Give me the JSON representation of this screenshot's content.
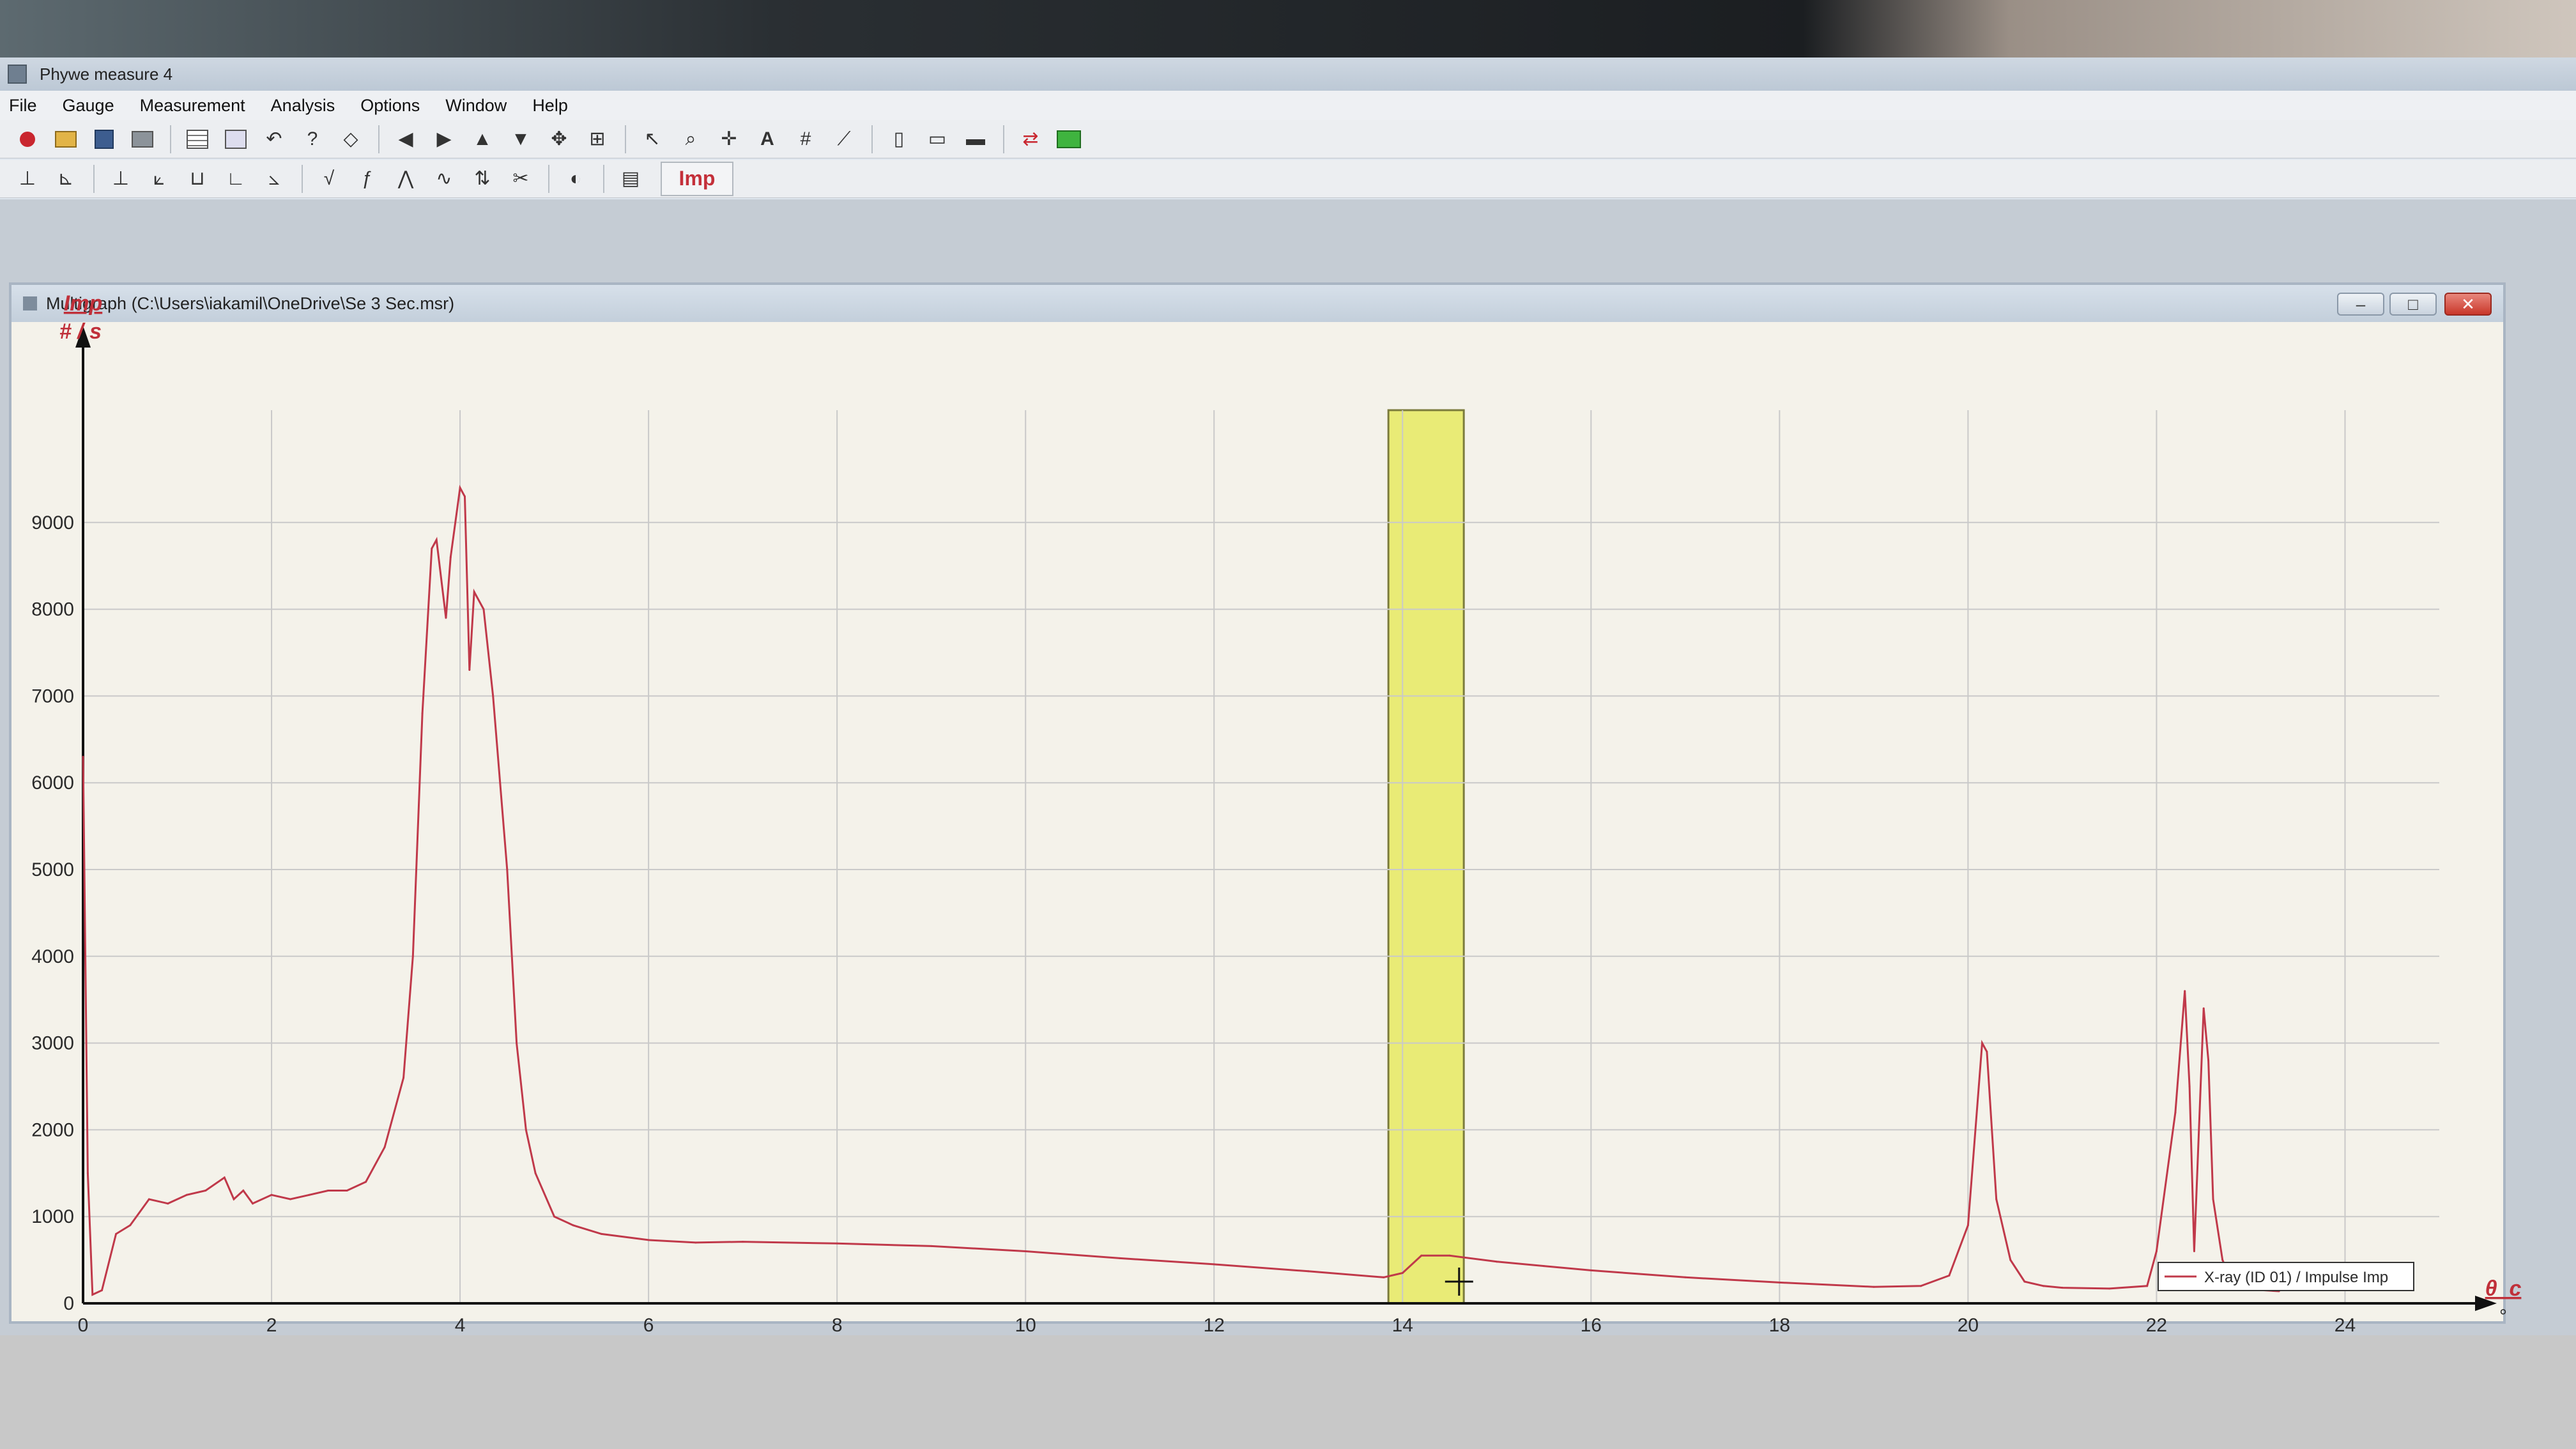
{
  "app": {
    "title": "Phywe measure 4",
    "menu": [
      "File",
      "Gauge",
      "Measurement",
      "Analysis",
      "Options",
      "Window",
      "Help"
    ],
    "toolbar1_icons": [
      "record-icon",
      "open-folder-icon",
      "save-icon",
      "print-icon",
      "table-icon",
      "image-icon",
      "undo-icon",
      "help-icon",
      "erase-icon",
      "arrow-left-icon",
      "arrow-right-icon",
      "arrow-up-icon",
      "arrow-down-icon",
      "move-icon",
      "autoscale-icon",
      "pointer-icon",
      "zoom-icon",
      "crosshair-icon",
      "text-icon",
      "grid-icon",
      "survey-icon",
      "channel-select-icon",
      "display-icon",
      "display-options-icon",
      "transfer-icon",
      "screen-icon"
    ],
    "toolbar2_icons": [
      "axis-a-icon",
      "axis-b-icon",
      "axis-c-icon",
      "axis-d-icon",
      "axis-e-icon",
      "axis-f-icon",
      "axis-g-icon",
      "sqrt-icon",
      "integral-icon",
      "peak-icon",
      "smooth-icon",
      "swap-icon",
      "cut-icon",
      "sound-icon",
      "legend-icon"
    ],
    "imp_button_label": "Imp"
  },
  "window": {
    "title": "Multigraph (C:\\Users\\iakamil\\OneDrive\\Se 3 Sec.msr)",
    "min_label": "–",
    "max_label": "□",
    "close_label": "✕"
  },
  "chart_data": {
    "type": "line",
    "ylabel": "Imp",
    "yunit": "# / s",
    "xlabel": "θ_c",
    "xunit": "°",
    "xlim": [
      0,
      25
    ],
    "ylim": [
      0,
      10000
    ],
    "xticks": [
      0,
      2,
      4,
      6,
      8,
      10,
      12,
      14,
      16,
      18,
      20,
      22,
      24
    ],
    "yticks": [
      0,
      1000,
      2000,
      3000,
      4000,
      5000,
      6000,
      7000,
      8000,
      9000
    ],
    "grid": true,
    "legend": "bottom-right",
    "series": [
      {
        "name": "X-ray (ID 01) / Impulse Imp",
        "color": "#c0394a",
        "x": [
          0.0,
          0.05,
          0.1,
          0.2,
          0.35,
          0.5,
          0.7,
          0.9,
          1.1,
          1.3,
          1.5,
          1.6,
          1.7,
          1.8,
          2.0,
          2.2,
          2.4,
          2.6,
          2.8,
          3.0,
          3.2,
          3.4,
          3.5,
          3.6,
          3.7,
          3.75,
          3.85,
          3.9,
          4.0,
          4.05,
          4.1,
          4.15,
          4.25,
          4.35,
          4.5,
          4.6,
          4.7,
          4.8,
          5.0,
          5.2,
          5.5,
          6.0,
          6.5,
          7.0,
          8.0,
          9.0,
          10.0,
          11.0,
          12.0,
          13.0,
          13.8,
          14.0,
          14.2,
          14.5,
          15.0,
          15.5,
          16.0,
          17.0,
          18.0,
          19.0,
          19.5,
          19.8,
          20.0,
          20.15,
          20.2,
          20.3,
          20.45,
          20.6,
          20.8,
          21.0,
          21.5,
          21.9,
          22.0,
          22.2,
          22.3,
          22.35,
          22.4,
          22.5,
          22.55,
          22.6,
          22.7,
          22.8,
          23.0,
          23.3
        ],
        "y": [
          6300,
          1500,
          100,
          150,
          800,
          900,
          1200,
          1150,
          1250,
          1300,
          1450,
          1200,
          1300,
          1150,
          1250,
          1200,
          1250,
          1300,
          1300,
          1400,
          1800,
          2600,
          4000,
          6800,
          8700,
          8800,
          7900,
          8600,
          9400,
          9300,
          7300,
          8200,
          8000,
          7000,
          5000,
          3000,
          2000,
          1500,
          1000,
          900,
          800,
          730,
          700,
          710,
          690,
          660,
          600,
          520,
          450,
          370,
          300,
          350,
          550,
          550,
          480,
          430,
          380,
          300,
          240,
          190,
          200,
          320,
          900,
          3000,
          2900,
          1200,
          500,
          250,
          200,
          180,
          170,
          200,
          600,
          2200,
          3600,
          2500,
          600,
          3400,
          2800,
          1200,
          500,
          250,
          160,
          140
        ]
      }
    ],
    "selection_band": [
      13.85,
      14.65
    ],
    "selection_color": "#e8eb6a",
    "cursor_position": [
      14.6,
      250
    ]
  }
}
